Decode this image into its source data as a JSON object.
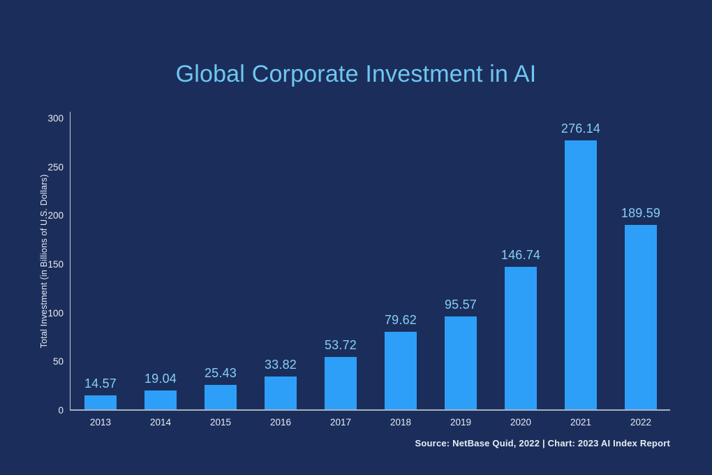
{
  "chart_data": {
    "type": "bar",
    "title": "Global Corporate Investment in AI",
    "xlabel": "",
    "ylabel": "Total Investment (in Billions of U.S. Dollars)",
    "categories": [
      "2013",
      "2014",
      "2015",
      "2016",
      "2017",
      "2018",
      "2019",
      "2020",
      "2021",
      "2022"
    ],
    "values": [
      14.57,
      19.04,
      25.43,
      33.82,
      53.72,
      79.62,
      95.57,
      146.74,
      276.14,
      189.59
    ],
    "value_labels": [
      "14.57",
      "19.04",
      "25.43",
      "33.82",
      "53.72",
      "79.62",
      "95.57",
      "146.74",
      "276.14",
      "189.59"
    ],
    "ylim": [
      0,
      300
    ],
    "yticks": [
      0,
      50,
      100,
      150,
      200,
      250,
      300
    ],
    "grid": false,
    "legend": null,
    "source": "Source: NetBase Quid, 2022 | Chart: 2023 AI Index Report",
    "colors": {
      "background": "#1b2e5b",
      "bar": "#2d9ff8",
      "title_text": "#6fc7f1",
      "value_label_text": "#86cef4",
      "axis_text": "#e8ecf3",
      "axis_line": "#aab1bf"
    }
  }
}
